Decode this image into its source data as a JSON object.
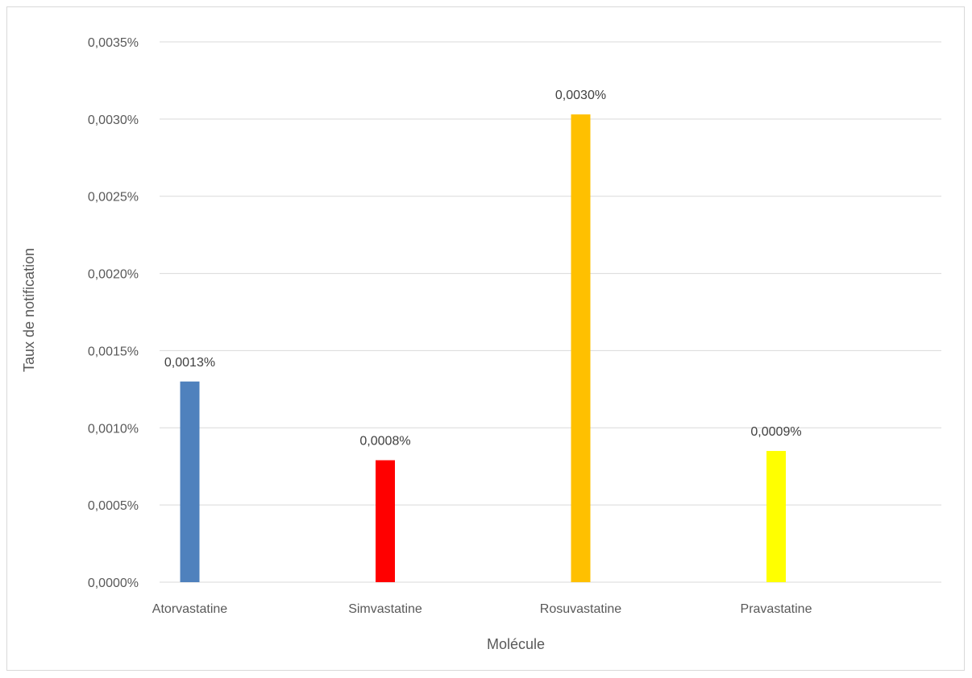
{
  "chart_data": {
    "type": "bar",
    "categories": [
      "Atorvastatine",
      "Simvastatine",
      "Rosuvastatine",
      "Pravastatine"
    ],
    "values": [
      0.0013,
      0.0008,
      0.003,
      0.0009
    ],
    "precise_values": [
      0.0013,
      0.00079,
      0.00303,
      0.00085
    ],
    "data_labels": [
      "0,0013%",
      "0,0008%",
      "0,0030%",
      "0,0009%"
    ],
    "colors": [
      "#4f81bd",
      "#ff0000",
      "#ffc000",
      "#ffff00"
    ],
    "title": "",
    "xlabel": "Molécule",
    "ylabel": "Taux de notification",
    "ylim": [
      0,
      0.0035
    ],
    "yticks": [
      0,
      0.0005,
      0.001,
      0.0015,
      0.002,
      0.0025,
      0.003,
      0.0035
    ],
    "ytick_labels": [
      "0,0000%",
      "0,0005%",
      "0,0010%",
      "0,0015%",
      "0,0020%",
      "0,0025%",
      "0,0030%",
      "0,0035%"
    ],
    "grid": true,
    "legend": "none"
  }
}
